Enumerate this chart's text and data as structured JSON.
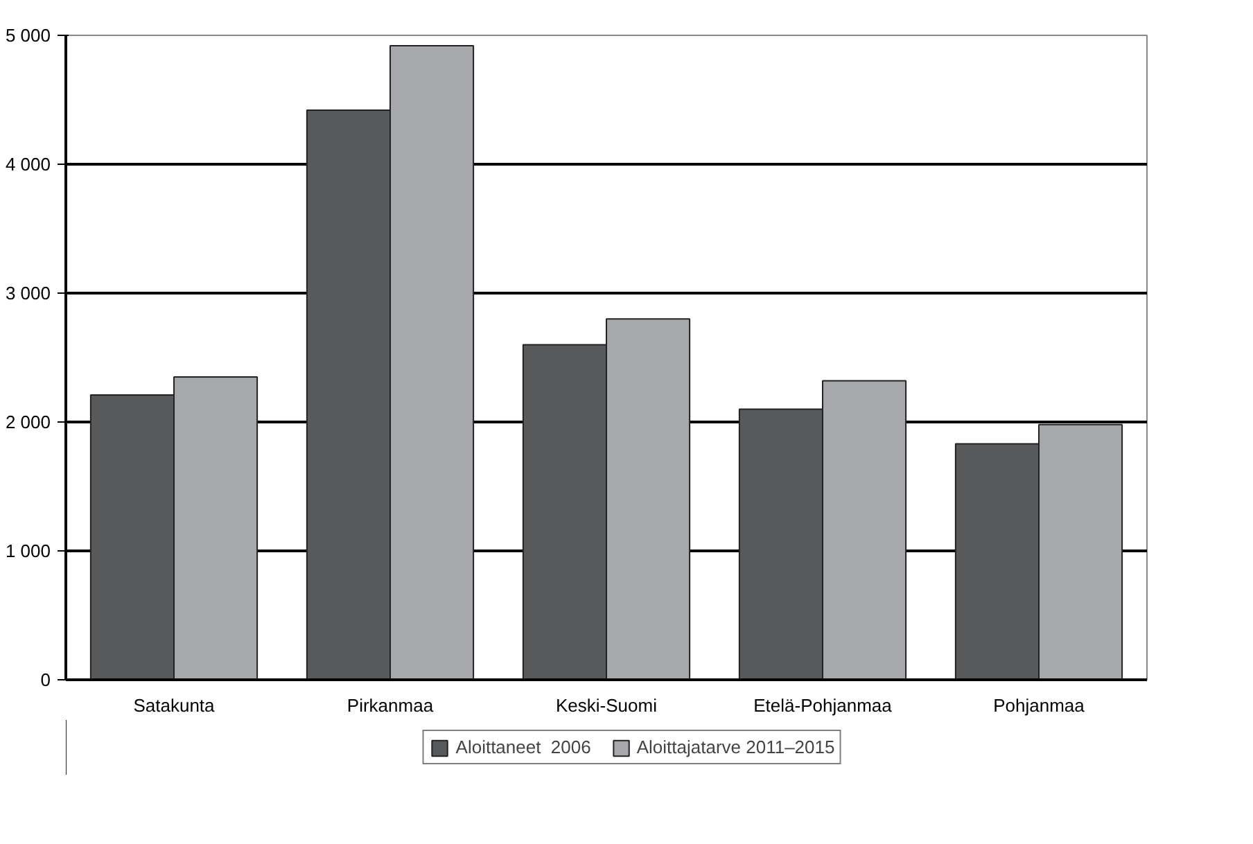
{
  "chart_data": {
    "type": "bar",
    "categories": [
      "Satakunta",
      "Pirkanmaa",
      "Keski-Suomi",
      "Etelä-Pohjanmaa",
      "Pohjanmaa"
    ],
    "series": [
      {
        "name": "Aloittaneet  2006",
        "color": "#58595b",
        "values": [
          2210,
          4420,
          2600,
          2100,
          1830
        ]
      },
      {
        "name": "Aloittajatarve 2011–2015",
        "color": "#a7a8ab",
        "values": [
          2350,
          4920,
          2800,
          2320,
          1980
        ]
      }
    ],
    "ylim": [
      0,
      5000
    ],
    "yticks": [
      0,
      {
        "value": 1000,
        "label": "1 000"
      },
      {
        "value": 2000,
        "label": "2 000"
      },
      {
        "value": 3000,
        "label": "3 000"
      },
      {
        "value": 4000,
        "label": "4 000"
      },
      {
        "value": 5000,
        "label": "5 000"
      }
    ],
    "grid": "y",
    "legend": "bottom"
  }
}
